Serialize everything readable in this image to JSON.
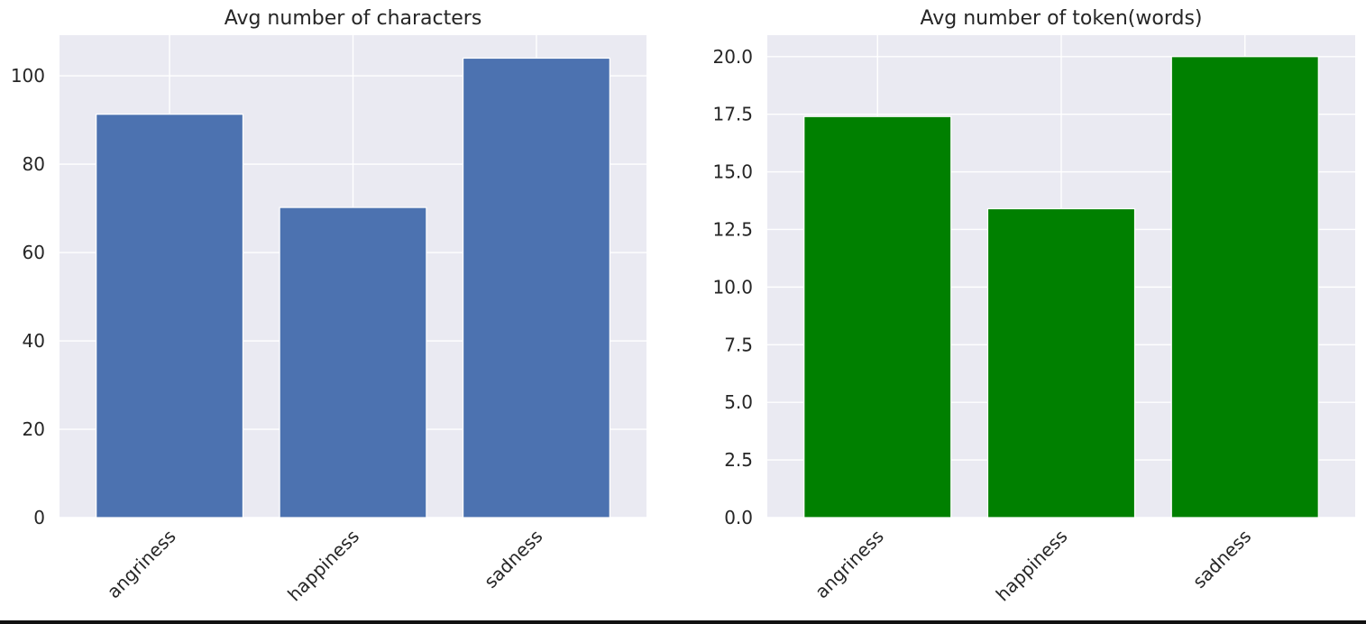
{
  "chart_data": [
    {
      "type": "bar",
      "title": "Avg number of characters",
      "xlabel": "",
      "ylabel": "",
      "categories": [
        "angriness",
        "happiness",
        "sadness"
      ],
      "values": [
        91.3,
        70.2,
        104.0
      ],
      "ylim": [
        0,
        109.2
      ],
      "yticks": [
        "0",
        "20",
        "40",
        "60",
        "80",
        "100"
      ],
      "ytick_values": [
        0,
        20,
        40,
        60,
        80,
        100
      ],
      "bar_color": "#4c72b0",
      "grid": true
    },
    {
      "type": "bar",
      "title": "Avg number of token(words)",
      "xlabel": "",
      "ylabel": "",
      "categories": [
        "angriness",
        "happiness",
        "sadness"
      ],
      "values": [
        17.4,
        13.4,
        20.0
      ],
      "ylim": [
        0,
        20.93
      ],
      "yticks": [
        "0.0",
        "2.5",
        "5.0",
        "7.5",
        "10.0",
        "12.5",
        "15.0",
        "17.5",
        "20.0"
      ],
      "ytick_values": [
        0,
        2.5,
        5,
        7.5,
        10,
        12.5,
        15,
        17.5,
        20
      ],
      "bar_color": "#008000",
      "grid": true
    }
  ]
}
